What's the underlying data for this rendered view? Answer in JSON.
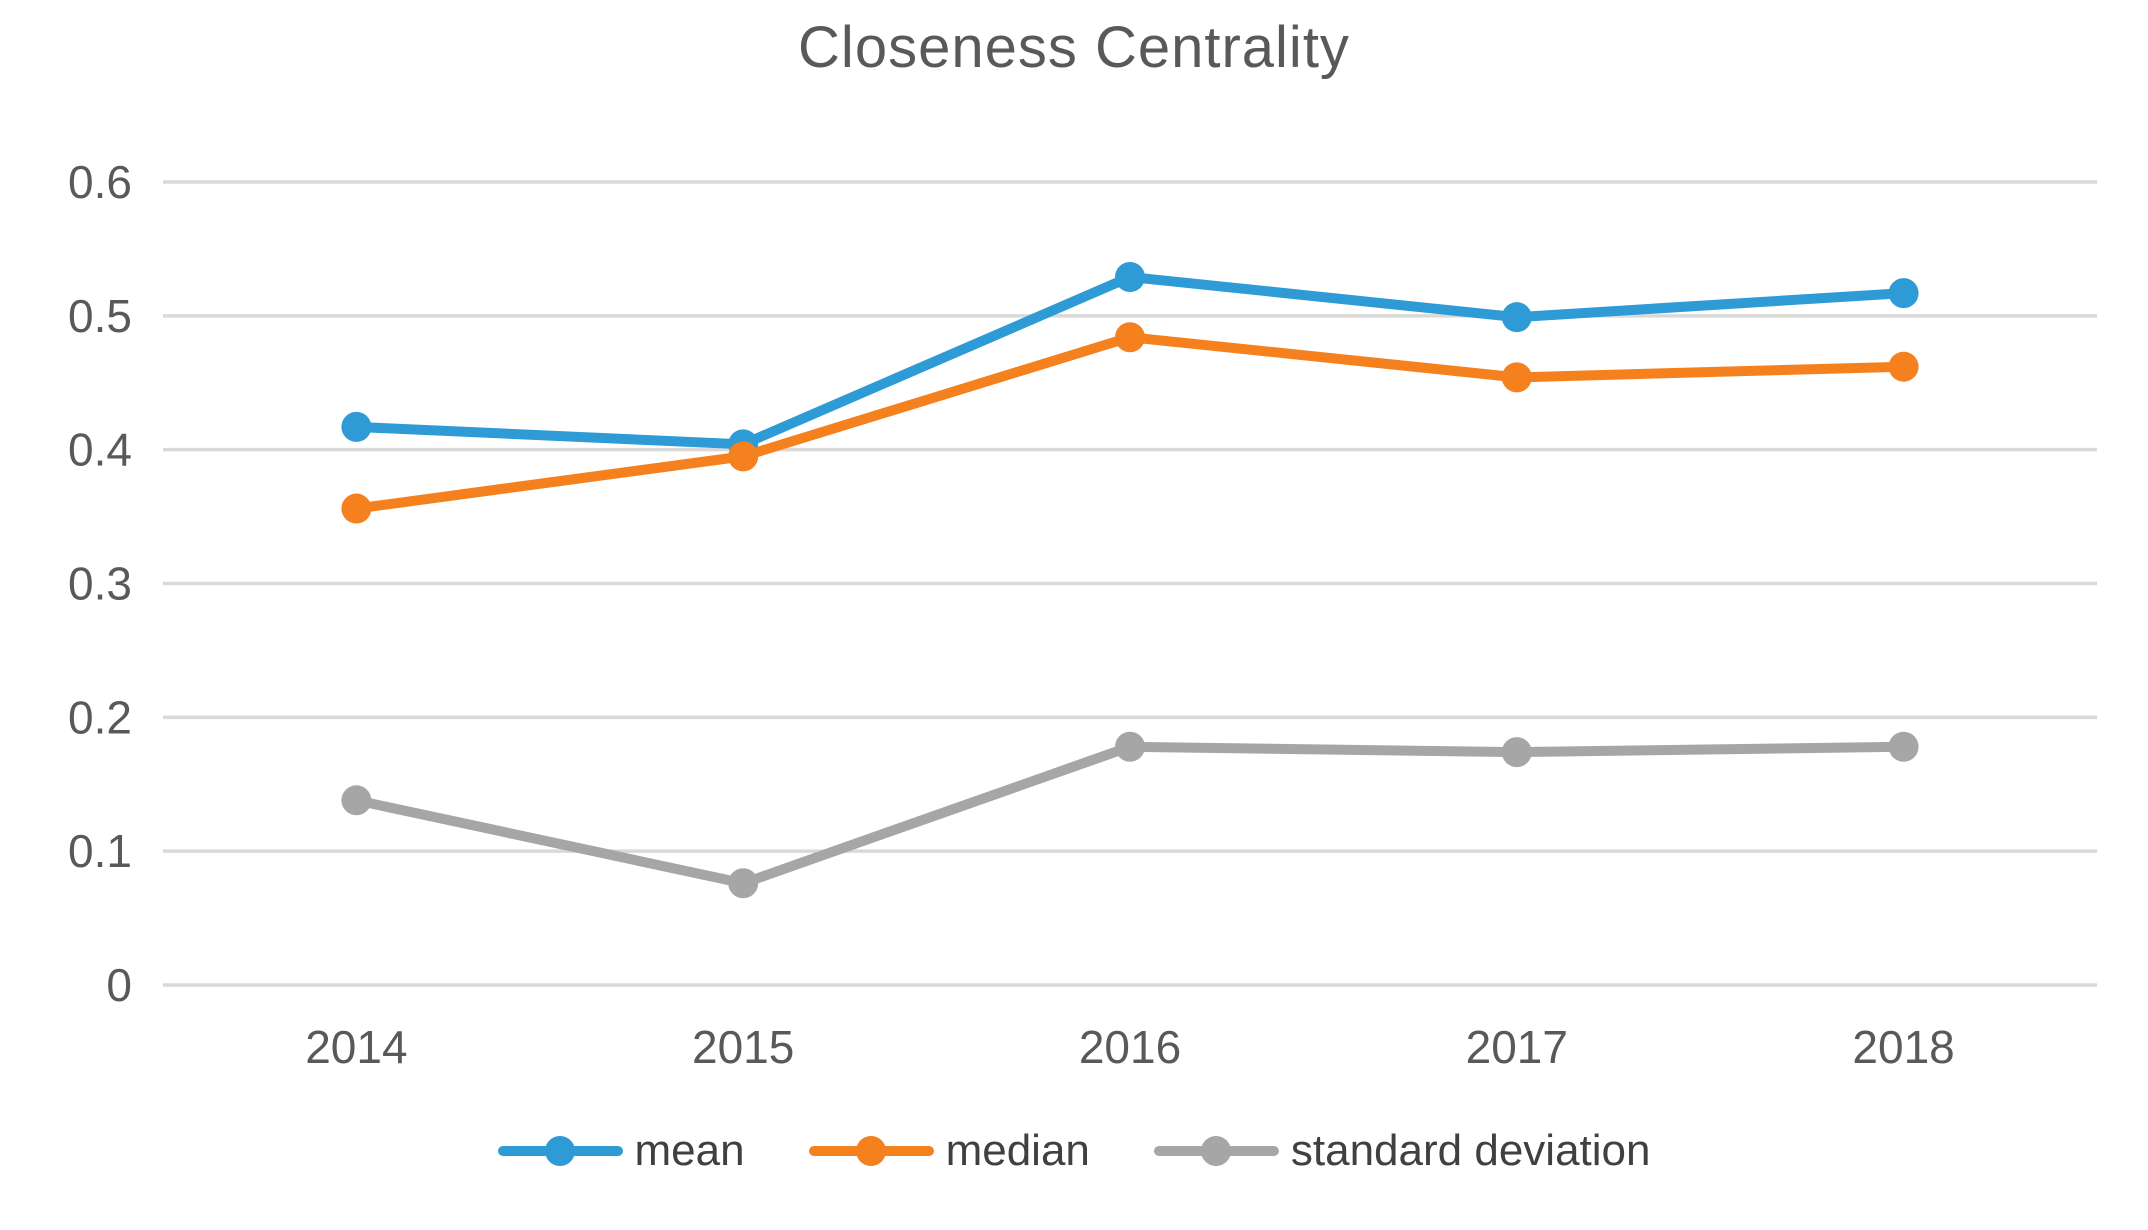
{
  "chart_data": {
    "type": "line",
    "title": "Closeness Centrality",
    "categories": [
      "2014",
      "2015",
      "2016",
      "2017",
      "2018"
    ],
    "series": [
      {
        "name": "mean",
        "color": "#2E9BD6",
        "values": [
          0.417,
          0.404,
          0.529,
          0.499,
          0.517
        ]
      },
      {
        "name": "median",
        "color": "#F5801E",
        "values": [
          0.356,
          0.395,
          0.484,
          0.454,
          0.462
        ]
      },
      {
        "name": "standard deviation",
        "color": "#A6A6A6",
        "values": [
          0.138,
          0.076,
          0.178,
          0.174,
          0.178
        ]
      }
    ],
    "xlabel": "",
    "ylabel": "",
    "ylim": [
      0,
      0.6
    ],
    "yticks": [
      0,
      0.1,
      0.2,
      0.3,
      0.4,
      0.5,
      0.6
    ],
    "ytick_labels": [
      "0",
      "0.1",
      "0.2",
      "0.3",
      "0.4",
      "0.5",
      "0.6"
    ],
    "grid": "horizontal-major",
    "legend_position": "bottom",
    "marker": "circle"
  },
  "colors": {
    "title_text": "#595959",
    "axis_text": "#595959",
    "legend_text": "#404040",
    "gridline": "#D9D9D9",
    "background": "#FFFFFF"
  },
  "legend": {
    "items": [
      {
        "label": "mean"
      },
      {
        "label": "median"
      },
      {
        "label": "standard deviation"
      }
    ]
  }
}
